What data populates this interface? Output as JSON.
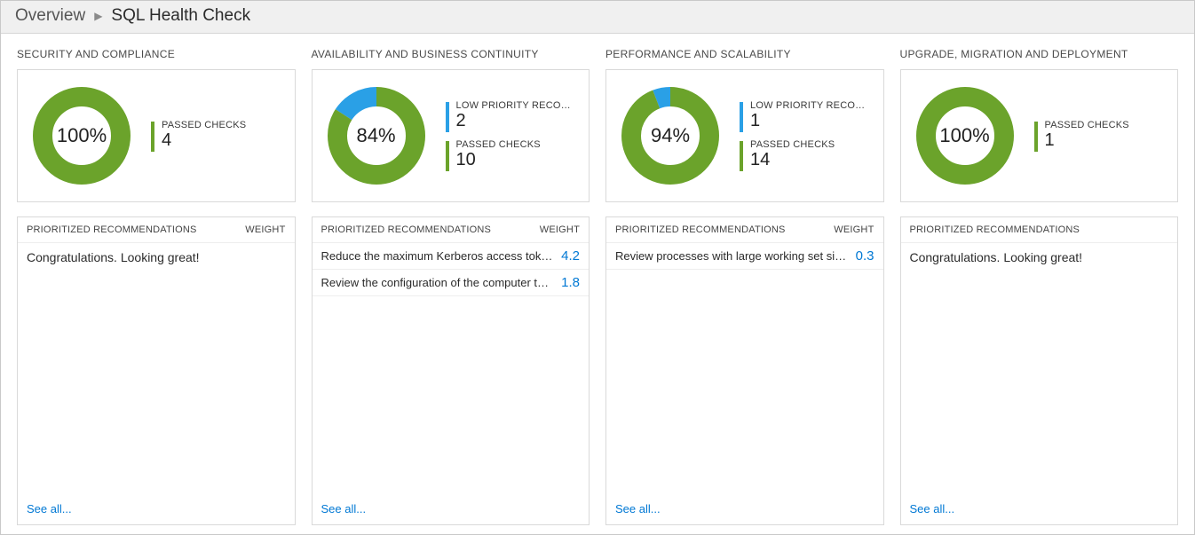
{
  "breadcrumb": {
    "root": "Overview",
    "current": "SQL Health Check"
  },
  "colors": {
    "green": "#6ba32b",
    "blue": "#2aa0e6",
    "link": "#0078d4",
    "track": "#ffffff",
    "ring_bg": "#ffffff"
  },
  "labels": {
    "low_priority": "LOW PRIORITY RECOMMENDATIO...",
    "passed_checks": "PASSED CHECKS",
    "prioritized": "PRIORITIZED RECOMMENDATIONS",
    "weight": "WEIGHT",
    "see_all": "See all...",
    "congrats": "Congratulations. Looking great!"
  },
  "columns": [
    {
      "title": "SECURITY AND COMPLIANCE",
      "donut": {
        "percent": 100,
        "label": "100%",
        "green": 100,
        "blue": 0
      },
      "stats": [
        {
          "kind": "passed",
          "value": "4"
        }
      ],
      "message": true,
      "show_weight": true,
      "recs": []
    },
    {
      "title": "AVAILABILITY AND BUSINESS CONTINUITY",
      "donut": {
        "percent": 84,
        "label": "84%",
        "green": 84,
        "blue": 16
      },
      "stats": [
        {
          "kind": "low",
          "value": "2"
        },
        {
          "kind": "passed",
          "value": "10"
        }
      ],
      "message": false,
      "show_weight": true,
      "recs": [
        {
          "text": "Reduce the maximum Kerberos access token size.",
          "weight": "4.2"
        },
        {
          "text": "Review the configuration of the computer that is rep...",
          "weight": "1.8"
        }
      ]
    },
    {
      "title": "PERFORMANCE AND SCALABILITY",
      "donut": {
        "percent": 94,
        "label": "94%",
        "green": 94,
        "blue": 6
      },
      "stats": [
        {
          "kind": "low",
          "value": "1"
        },
        {
          "kind": "passed",
          "value": "14"
        }
      ],
      "message": false,
      "show_weight": true,
      "recs": [
        {
          "text": "Review processes with large working set sizes.",
          "weight": "0.3"
        }
      ]
    },
    {
      "title": "UPGRADE, MIGRATION AND DEPLOYMENT",
      "donut": {
        "percent": 100,
        "label": "100%",
        "green": 100,
        "blue": 0
      },
      "stats": [
        {
          "kind": "passed",
          "value": "1"
        }
      ],
      "message": true,
      "show_weight": false,
      "recs": []
    }
  ]
}
